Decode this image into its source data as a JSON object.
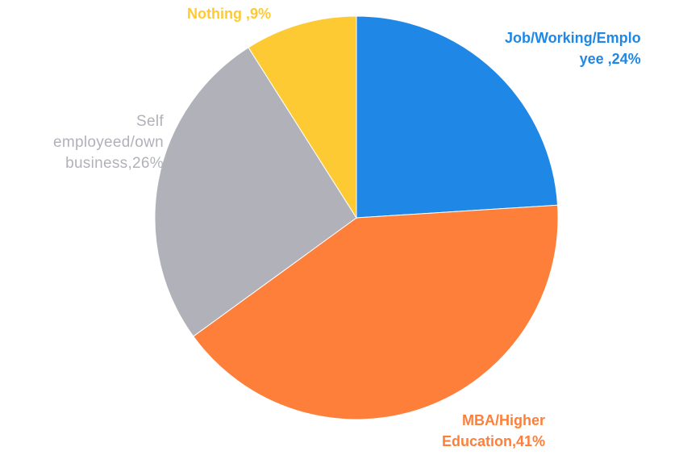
{
  "chart_data": {
    "type": "pie",
    "title": "",
    "slices": [
      {
        "label_lines": [
          "Job/Working/Emplo",
          "yee ,24%"
        ],
        "value": 24,
        "color": "#1f87e5"
      },
      {
        "label_lines": [
          "MBA/Higher",
          "Education,41%"
        ],
        "value": 41,
        "color": "#fd7f3a"
      },
      {
        "label_lines": [
          "Self",
          "employeed/own",
          "business,26%"
        ],
        "value": 26,
        "color": "#b1b2b9"
      },
      {
        "label_lines": [
          "Nothing ,9%"
        ],
        "value": 9,
        "color": "#fdca33"
      }
    ]
  }
}
